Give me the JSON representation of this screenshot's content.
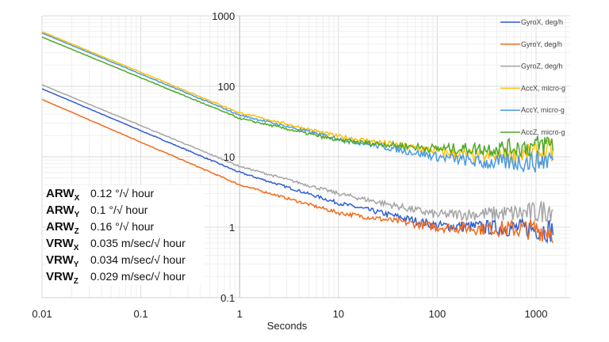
{
  "chart_data": {
    "type": "line",
    "xlabel": "Seconds",
    "ylabel": "",
    "xscale": "log",
    "yscale": "log",
    "xlim": [
      0.01,
      2200
    ],
    "ylim": [
      0.1,
      1000
    ],
    "grid": true,
    "legend_position": "right",
    "x_ticks": [
      "0.01",
      "0.1",
      "1",
      "10",
      "100",
      "1000"
    ],
    "y_ticks": [
      "0.1",
      "1",
      "10",
      "100",
      "1000"
    ],
    "series": [
      {
        "name": "GyroX, deg/h",
        "color": "#2f5fd0",
        "x": [
          0.01,
          1,
          10,
          100,
          1000,
          1500
        ],
        "y": [
          92,
          6,
          2.2,
          1.05,
          0.95,
          0.9
        ]
      },
      {
        "name": "GyroY, deg/h",
        "color": "#f26b1d",
        "x": [
          0.01,
          1,
          10,
          100,
          1000,
          1500
        ],
        "y": [
          65,
          4,
          1.6,
          1.0,
          0.93,
          0.9
        ]
      },
      {
        "name": "GyroZ, deg/h",
        "color": "#a5a5a5",
        "x": [
          0.01,
          1,
          10,
          100,
          1000,
          1500
        ],
        "y": [
          105,
          7.3,
          3.0,
          1.5,
          1.6,
          1.9
        ]
      },
      {
        "name": "AccX, micro-g",
        "color": "#ffc000",
        "x": [
          0.01,
          1,
          10,
          100,
          300,
          1000,
          1500
        ],
        "y": [
          595,
          42,
          19.5,
          12,
          10,
          11,
          12
        ]
      },
      {
        "name": "AccY, micro-g",
        "color": "#4a9ae0",
        "x": [
          0.01,
          1,
          10,
          100,
          300,
          1000,
          1500
        ],
        "y": [
          570,
          39,
          18,
          10,
          8.2,
          8.5,
          9.5
        ]
      },
      {
        "name": "AccZ, micro-g",
        "color": "#4fa82a",
        "x": [
          0.01,
          1,
          10,
          100,
          300,
          1000,
          1500
        ],
        "y": [
          500,
          35,
          17,
          13,
          13,
          14,
          16
        ]
      }
    ]
  },
  "annotations": [
    {
      "label": "ARW",
      "sub": "X",
      "value": "0.12 °/√ hour"
    },
    {
      "label": "ARW",
      "sub": "Y",
      "value": "0.1 °/√ hour"
    },
    {
      "label": "ARW",
      "sub": "Z",
      "value": "0.16 °/√ hour"
    },
    {
      "label": "VRW",
      "sub": "X",
      "value": "0.035 m/sec/√ hour"
    },
    {
      "label": "VRW",
      "sub": "Y",
      "value": "0.034 m/sec/√ hour"
    },
    {
      "label": "VRW",
      "sub": "Z",
      "value": "0.029 m/sec/√ hour"
    }
  ]
}
